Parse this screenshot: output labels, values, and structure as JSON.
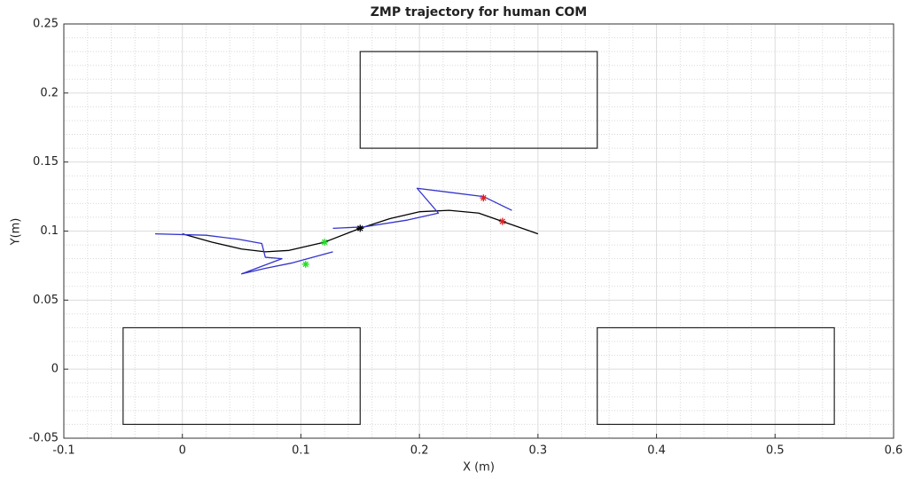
{
  "chart_data": {
    "type": "line",
    "title": "ZMP trajectory for human COM",
    "xlabel": "X (m)",
    "ylabel": "Y(m)",
    "xlim": [
      -0.1,
      0.6
    ],
    "ylim": [
      -0.05,
      0.25
    ],
    "xticks": [
      -0.1,
      0,
      0.1,
      0.2,
      0.3,
      0.4,
      0.5,
      0.6
    ],
    "yticks": [
      -0.05,
      0,
      0.05,
      0.1,
      0.15,
      0.2,
      0.25
    ],
    "grid": true,
    "minor_grid": true,
    "series": [
      {
        "color": "#000000",
        "x": [
          0,
          0.025,
          0.05,
          0.07,
          0.09,
          0.12,
          0.15,
          0.175,
          0.2,
          0.225,
          0.25,
          0.27,
          0.3
        ],
        "values": [
          0.098,
          0.092,
          0.087,
          0.085,
          0.086,
          0.092,
          0.102,
          0.109,
          0.114,
          0.115,
          0.113,
          0.107,
          0.098
        ]
      },
      {
        "color": "#3333cc",
        "x": [
          -0.023,
          0.02,
          0.048,
          0.067,
          0.07,
          0.084,
          0.05,
          0.07,
          0.093,
          0.127,
          null,
          0.127,
          0.153,
          0.19,
          0.216,
          0.198,
          0.254,
          0.278
        ],
        "values": [
          0.098,
          0.097,
          0.094,
          0.091,
          0.081,
          0.08,
          0.069,
          0.073,
          0.077,
          0.085,
          null,
          0.102,
          0.103,
          0.108,
          0.113,
          0.131,
          0.125,
          0.115
        ]
      }
    ],
    "markers": [
      {
        "x": 0.12,
        "y": 0.092,
        "color": "#22dd22"
      },
      {
        "x": 0.104,
        "y": 0.076,
        "color": "#22dd22"
      },
      {
        "x": 0.15,
        "y": 0.102,
        "color": "#000000"
      },
      {
        "x": 0.254,
        "y": 0.124,
        "color": "#dd2222"
      },
      {
        "x": 0.27,
        "y": 0.107,
        "color": "#dd2222"
      }
    ],
    "rectangles": [
      {
        "x": [
          -0.05,
          0.15
        ],
        "y": [
          -0.04,
          0.03
        ]
      },
      {
        "x": [
          0.15,
          0.35
        ],
        "y": [
          0.16,
          0.23
        ]
      },
      {
        "x": [
          0.35,
          0.55
        ],
        "y": [
          -0.04,
          0.03
        ]
      }
    ]
  }
}
